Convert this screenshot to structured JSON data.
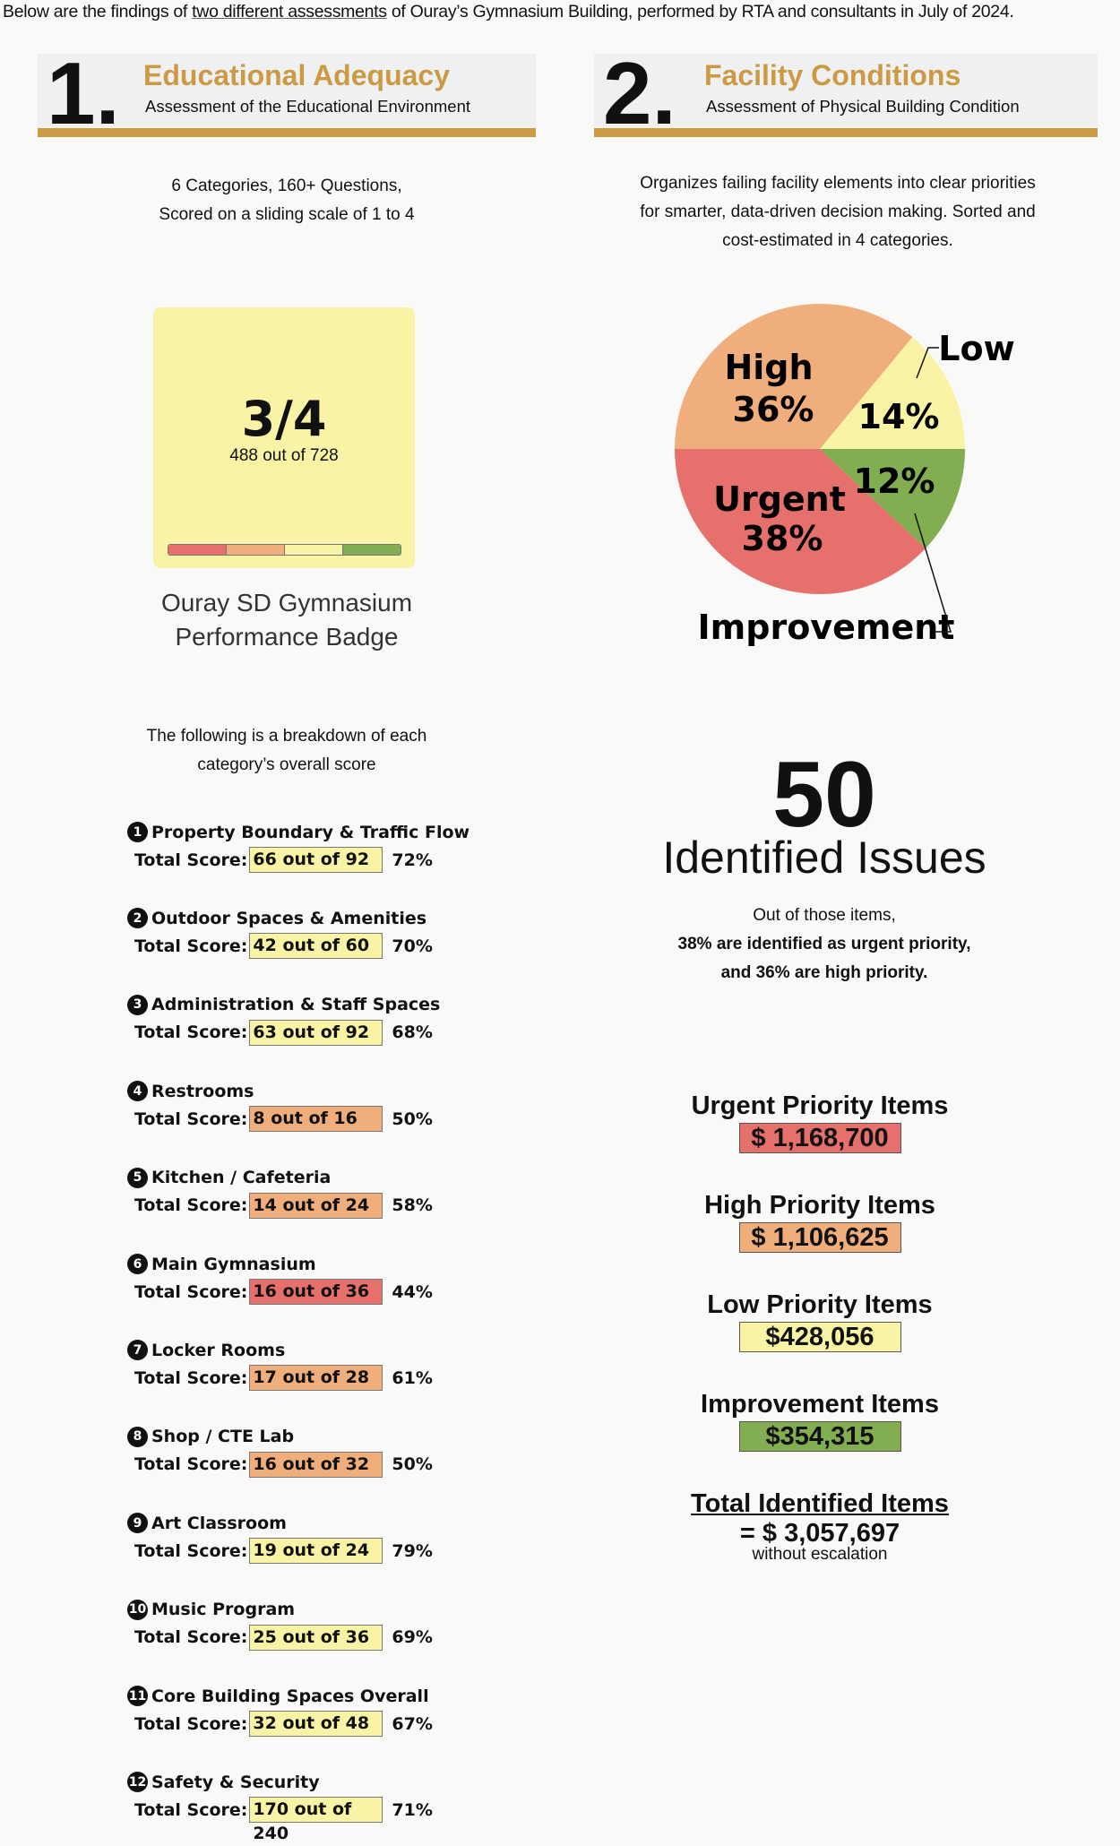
{
  "intro": {
    "before": "Below are the findings of ",
    "link": "two different assessments",
    "after": " of Ouray’s Gymnasium Building, performed by RTA and consultants in July of 2024."
  },
  "section1": {
    "number": "1.",
    "title": "Educational Adequacy",
    "subtitle": "Assessment of the Educational Environment",
    "desc_lines": [
      "6 Categories, 160+ Questions,",
      "Scored on a sliding scale of 1 to 4"
    ]
  },
  "section2": {
    "number": "2.",
    "title": "Facility Conditions",
    "subtitle": "Assessment of Physical Building Condition",
    "desc_lines": [
      "Organizes failing facility elements into clear priorities",
      "for smarter, data-driven decision making. Sorted and",
      "cost-estimated in 4 categories."
    ]
  },
  "badge": {
    "score": "3/4",
    "detail": "488 out of 728",
    "caption_lines": [
      "Ouray SD Gymnasium",
      "Performance Badge"
    ],
    "scale_colors": [
      "#e5706c",
      "#efae7b",
      "#f9f4a5",
      "#82ad50"
    ]
  },
  "breakdown_intro": [
    "The following is a breakdown of each",
    "category’s overall score"
  ],
  "score_label": "Total Score:",
  "categories": [
    {
      "n": "1",
      "name": "Property Boundary & Traffic Flow",
      "score": "66 out of 92",
      "pct": "72%",
      "color": "#f9f4a5"
    },
    {
      "n": "2",
      "name": "Outdoor Spaces & Amenities",
      "score": "42 out of 60",
      "pct": "70%",
      "color": "#f9f4a5"
    },
    {
      "n": "3",
      "name": "Administration & Staff Spaces",
      "score": "63 out of 92",
      "pct": "68%",
      "color": "#f9f4a5"
    },
    {
      "n": "4",
      "name": "Restrooms",
      "score": "8 out of 16",
      "pct": "50%",
      "color": "#efae7b"
    },
    {
      "n": "5",
      "name": "Kitchen / Cafeteria",
      "score": "14 out of 24",
      "pct": "58%",
      "color": "#efae7b"
    },
    {
      "n": "6",
      "name": "Main Gymnasium",
      "score": "16 out of 36",
      "pct": "44%",
      "color": "#e5706c"
    },
    {
      "n": "7",
      "name": "Locker Rooms",
      "score": "17 out of 28",
      "pct": "61%",
      "color": "#efae7b"
    },
    {
      "n": "8",
      "name": "Shop / CTE Lab",
      "score": "16 out of 32",
      "pct": "50%",
      "color": "#efae7b"
    },
    {
      "n": "9",
      "name": "Art Classroom",
      "score": "19 out of 24",
      "pct": "79%",
      "color": "#f9f4a5"
    },
    {
      "n": "10",
      "name": "Music Program",
      "score": "25 out of 36",
      "pct": "69%",
      "color": "#f9f4a5"
    },
    {
      "n": "11",
      "name": "Core Building Spaces Overall",
      "score": "32 out of 48",
      "pct": "67%",
      "color": "#f9f4a5"
    },
    {
      "n": "12",
      "name": "Safety & Security",
      "score": "170 out of 240",
      "pct": "71%",
      "color": "#f9f4a5"
    }
  ],
  "chart_data": {
    "type": "pie",
    "slices": [
      {
        "name": "Low",
        "label": "14%",
        "value": 14,
        "color": "#f9f4a5"
      },
      {
        "name": "High",
        "label": "36%",
        "value": 36,
        "color": "#efae7b"
      },
      {
        "name": "Urgent",
        "label": "38%",
        "value": 38,
        "color": "#e5706c"
      },
      {
        "name": "Improvement",
        "label": "12%",
        "value": 12,
        "color": "#82ad50"
      }
    ]
  },
  "issues": {
    "count": "50",
    "label": "Identified Issues",
    "lines": [
      "Out of those items,",
      "38% are identified as urgent priority,",
      "and 36% are high priority."
    ]
  },
  "costs": [
    {
      "title": "Urgent Priority Items",
      "value": "$ 1,168,700",
      "color": "#e5706c"
    },
    {
      "title": "High Priority Items",
      "value": "$ 1,106,625",
      "color": "#efae7b"
    },
    {
      "title": "Low Priority Items",
      "value": "$428,056",
      "color": "#f9f4a5"
    },
    {
      "title": "Improvement Items",
      "value": "$354,315",
      "color": "#82ad50"
    }
  ],
  "total": {
    "title": "Total Identified Items",
    "value": "= $ 3,057,697",
    "note": "without escalation"
  }
}
